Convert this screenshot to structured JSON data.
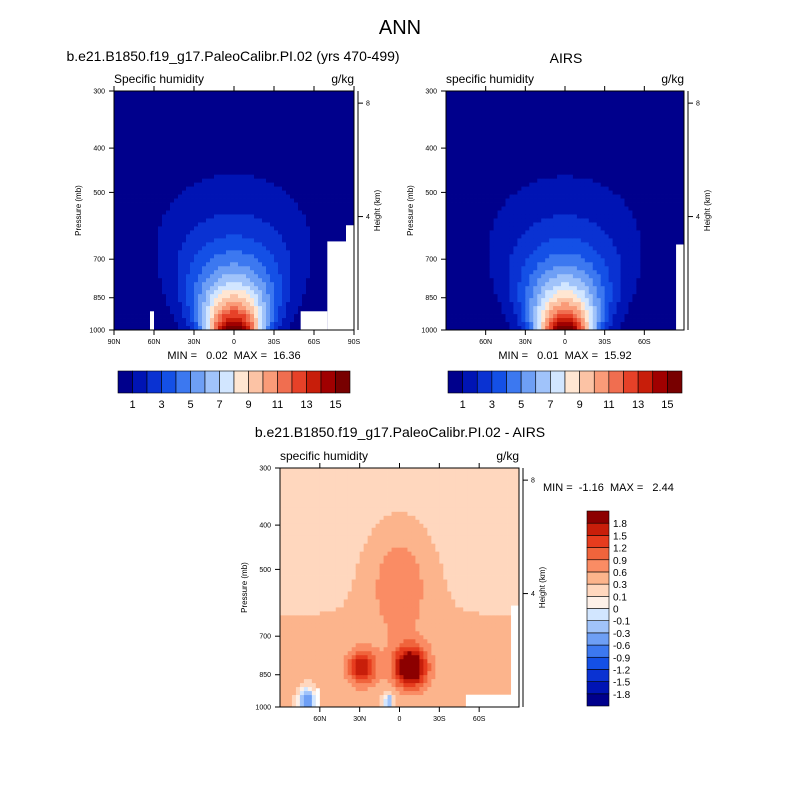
{
  "page_title": "ANN",
  "chart_data": [
    {
      "type": "heatmap",
      "id": "model",
      "title": "b.e21.B1850.f19_g17.PaleoCalibr.PI.02 (yrs 470-499)",
      "left_string": "Specific humidity",
      "right_string": "g/kg",
      "ylabel": "Pressure (mb)",
      "ylabel_right": "Height (km)",
      "yticks": [
        "300",
        "400",
        "500",
        "700",
        "850",
        "1000"
      ],
      "ytick_values": [
        300,
        400,
        500,
        700,
        850,
        1000
      ],
      "ylim": [
        1000,
        300
      ],
      "xlim": [
        90,
        -90
      ],
      "xticks": [
        "90N",
        "60N",
        "30N",
        "0",
        "30S",
        "60S",
        "90S"
      ],
      "xtick_values": [
        90,
        60,
        30,
        0,
        -30,
        -60,
        -90
      ],
      "height_ticks": [
        "8",
        "4"
      ],
      "height_tick_values": [
        8,
        4
      ],
      "min": "0.02",
      "max": "16.36",
      "stats_text": "MIN =   0.02  MAX =  16.36",
      "surface_q": 16.4,
      "missing": [
        {
          "lat_from": 63,
          "lat_to": 60,
          "p_from": 910,
          "p_to": 1000
        },
        {
          "lat_from": -50,
          "lat_to": -70,
          "p_from": 910,
          "p_to": 1000
        },
        {
          "lat_from": -70,
          "lat_to": -84,
          "p_from": 640,
          "p_to": 1000
        },
        {
          "lat_from": -84,
          "lat_to": -90,
          "p_from": 590,
          "p_to": 1000
        }
      ],
      "colorbar": {
        "levels": [
          1,
          2,
          3,
          4,
          5,
          6,
          7,
          8,
          9,
          10,
          11,
          12,
          13,
          14,
          15
        ],
        "labels": [
          "1",
          "3",
          "5",
          "7",
          "9",
          "11",
          "13",
          "15"
        ],
        "colors": [
          "#00008c",
          "#0014b4",
          "#0a32d2",
          "#1450e6",
          "#3c78f0",
          "#6e9ff5",
          "#a0c3fa",
          "#d2e6ff",
          "#ffe6d2",
          "#fcc3a5",
          "#fa9b78",
          "#f06e50",
          "#e64128",
          "#c81e0a",
          "#a00000",
          "#780000"
        ]
      }
    },
    {
      "type": "heatmap",
      "id": "obs",
      "title": "AIRS",
      "left_string": "specific humidity",
      "right_string": "g/kg",
      "ylabel": "Pressure (mb)",
      "ylabel_right": "Height (km)",
      "yticks": [
        "300",
        "400",
        "500",
        "700",
        "850",
        "1000"
      ],
      "ytick_values": [
        300,
        400,
        500,
        700,
        850,
        1000
      ],
      "ylim": [
        1000,
        300
      ],
      "xlim": [
        90,
        -90
      ],
      "xticks": [
        "60N",
        "30N",
        "0",
        "30S",
        "60S"
      ],
      "xtick_values": [
        60,
        30,
        0,
        -30,
        -60
      ],
      "height_ticks": [
        "8",
        "4"
      ],
      "height_tick_values": [
        8,
        4
      ],
      "min": "0.01",
      "max": "15.92",
      "stats_text": "MIN =   0.01  MAX =  15.92",
      "surface_q": 15.9,
      "missing": [
        {
          "lat_from": -84,
          "lat_to": -90,
          "p_from": 650,
          "p_to": 1000
        }
      ],
      "colorbar": {
        "levels": [
          1,
          2,
          3,
          4,
          5,
          6,
          7,
          8,
          9,
          10,
          11,
          12,
          13,
          14,
          15
        ],
        "labels": [
          "1",
          "3",
          "5",
          "7",
          "9",
          "11",
          "13",
          "15"
        ],
        "colors": [
          "#00008c",
          "#0014b4",
          "#0a32d2",
          "#1450e6",
          "#3c78f0",
          "#6e9ff5",
          "#a0c3fa",
          "#d2e6ff",
          "#ffe6d2",
          "#fcc3a5",
          "#fa9b78",
          "#f06e50",
          "#e64128",
          "#c81e0a",
          "#a00000",
          "#780000"
        ]
      }
    },
    {
      "type": "heatmap",
      "id": "diff",
      "title": "b.e21.B1850.f19_g17.PaleoCalibr.PI.02 - AIRS",
      "left_string": "specific humidity",
      "right_string": "g/kg",
      "ylabel": "Pressure (mb)",
      "ylabel_right": "Height (km)",
      "yticks": [
        "300",
        "400",
        "500",
        "700",
        "850",
        "1000"
      ],
      "ytick_values": [
        300,
        400,
        500,
        700,
        850,
        1000
      ],
      "ylim": [
        1000,
        300
      ],
      "xlim": [
        90,
        -90
      ],
      "xticks": [
        "60N",
        "30N",
        "0",
        "30S",
        "60S"
      ],
      "xtick_values": [
        60,
        30,
        0,
        -30,
        -60
      ],
      "height_ticks": [
        "8",
        "4"
      ],
      "height_tick_values": [
        8,
        4
      ],
      "min": "-1.16",
      "max": "2.44",
      "stats_text": "MIN =  -1.16  MAX =   2.44",
      "missing": [
        {
          "lat_from": 63,
          "lat_to": 60,
          "p_from": 910,
          "p_to": 1000
        },
        {
          "lat_from": -50,
          "lat_to": -90,
          "p_from": 940,
          "p_to": 1000
        },
        {
          "lat_from": -84,
          "lat_to": -90,
          "p_from": 600,
          "p_to": 1000
        }
      ],
      "colorbar": {
        "levels": [
          -1.8,
          -1.5,
          -1.2,
          -0.9,
          -0.6,
          -0.3,
          -0.1,
          0,
          0.1,
          0.3,
          0.6,
          0.9,
          1.2,
          1.5,
          1.8
        ],
        "labels": [
          "-1.8",
          "-1.5",
          "-1.2",
          "-0.9",
          "-0.6",
          "-0.3",
          "-0.1",
          "0",
          "0.1",
          "0.3",
          "0.6",
          "0.9",
          "1.2",
          "1.5",
          "1.8"
        ],
        "colors": [
          "#00008c",
          "#0014b4",
          "#0a32d2",
          "#1450e6",
          "#3c78f0",
          "#6e9ff5",
          "#a0c3fa",
          "#d2e6ff",
          "#fdf0e8",
          "#ffd7be",
          "#fcb48c",
          "#fa8c64",
          "#f0643c",
          "#e63c1e",
          "#c81e0a",
          "#8c0000"
        ]
      }
    }
  ]
}
